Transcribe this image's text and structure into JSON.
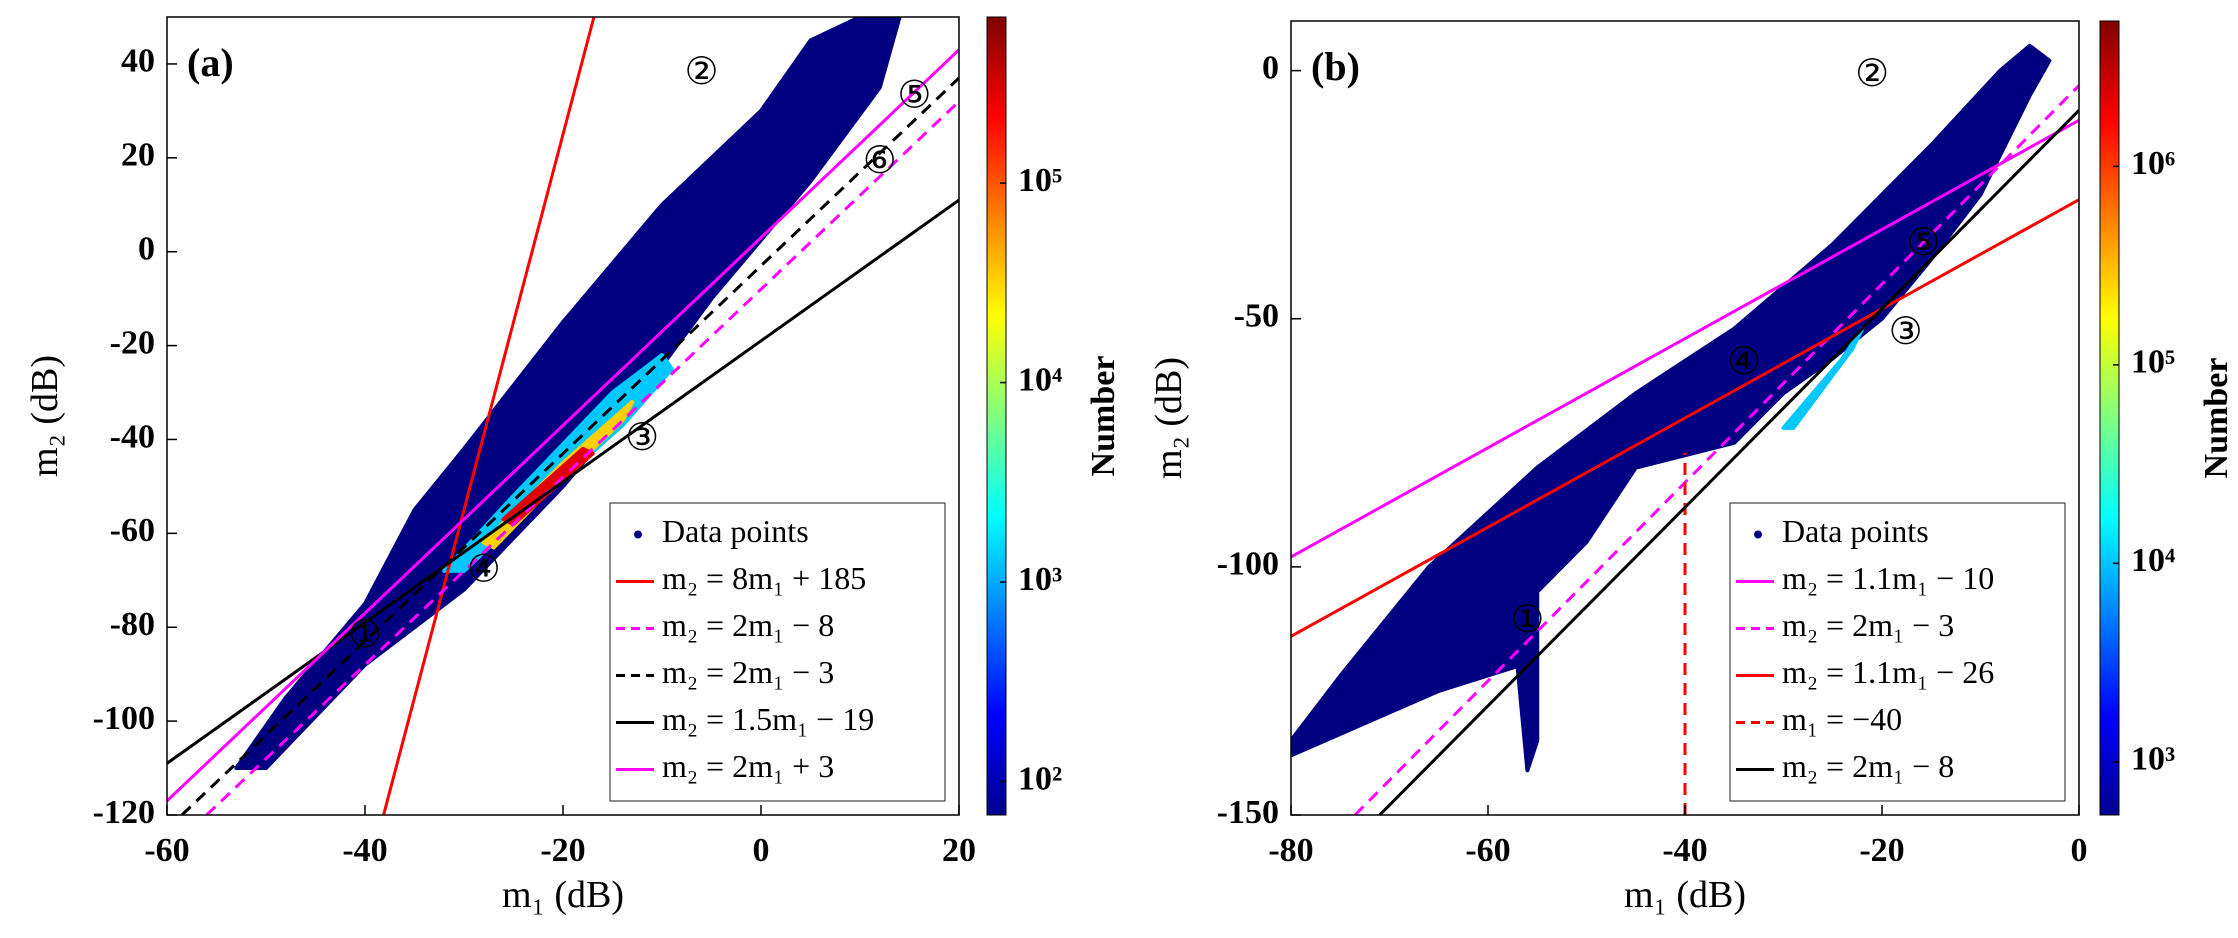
{
  "chart_data": [
    {
      "type": "scatter",
      "panel_label": "(a)",
      "xlabel": "m₁ (dB)",
      "ylabel": "m₂ (dB)",
      "xlim": [
        -60,
        20
      ],
      "ylim": [
        -120,
        50
      ],
      "xticks": [
        -60,
        -40,
        -20,
        0,
        20
      ],
      "yticks": [
        -120,
        -100,
        -80,
        -60,
        -40,
        -20,
        0,
        20,
        40
      ],
      "legend": "lower right",
      "series": [
        {
          "name": "Data points",
          "style": "cloud",
          "color": "#000080",
          "x": [
            -53,
            -48,
            -40,
            -35,
            -30,
            -20,
            -10,
            0,
            5,
            10,
            14,
            12,
            5,
            -5,
            -12,
            -20,
            -30,
            -40,
            -50
          ],
          "values": [
            -110,
            -95,
            -75,
            -55,
            -42,
            -15,
            10,
            30,
            45,
            50,
            50,
            35,
            15,
            -10,
            -30,
            -50,
            -72,
            -88,
            -110
          ]
        },
        {
          "style": "cloud",
          "color": "#00c8ff",
          "x": [
            -32,
            -25,
            -15,
            -10,
            -9,
            -14,
            -22,
            -30
          ],
          "values": [
            -68,
            -52,
            -30,
            -22,
            -25,
            -37,
            -52,
            -68
          ]
        },
        {
          "style": "cloud",
          "color": "#ffd000",
          "x": [
            -28,
            -20,
            -13,
            -14,
            -21,
            -27
          ],
          "values": [
            -62,
            -45,
            -32,
            -36,
            -50,
            -63
          ]
        },
        {
          "style": "cloud",
          "color": "#e00000",
          "x": [
            -26,
            -18,
            -17,
            -25
          ],
          "values": [
            -57,
            -42,
            -43,
            -58
          ]
        },
        {
          "name": "m₂ = 8m₁ + 185",
          "style": "line",
          "color": "#ff0000",
          "x": [
            -38.125,
            -16.875
          ],
          "values": [
            -120,
            50
          ]
        },
        {
          "name": "m₂ = 2m₁ − 8",
          "style": "dashed",
          "color": "#ff00ff",
          "x": [
            -56,
            20
          ],
          "values": [
            -120,
            32
          ]
        },
        {
          "name": "m₂ = 2m₁ − 3",
          "style": "dashed",
          "color": "#000000",
          "x": [
            -58.5,
            20
          ],
          "values": [
            -120,
            37
          ]
        },
        {
          "name": "m₂ = 1.5m₁ − 19",
          "style": "line",
          "color": "#000000",
          "x": [
            -60,
            20
          ],
          "values": [
            -109,
            11
          ]
        },
        {
          "name": "m₂ = 2m₁ + 3",
          "style": "line",
          "color": "#ff00ff",
          "x": [
            -60,
            20
          ],
          "values": [
            -117,
            43
          ]
        }
      ],
      "annotations": [
        {
          "text": "①",
          "x": -40,
          "y": -82
        },
        {
          "text": "②",
          "x": -6,
          "y": 38
        },
        {
          "text": "③",
          "x": -12,
          "y": -40
        },
        {
          "text": "④",
          "x": -28,
          "y": -68
        },
        {
          "text": "⑤",
          "x": 15.5,
          "y": 33
        },
        {
          "text": "⑥",
          "x": 12,
          "y": 19
        }
      ],
      "colorbar": {
        "label": "Number",
        "scale": "log",
        "colormap": "jet",
        "lim": [
          68,
          680000
        ],
        "ticks": [
          {
            "value": 100,
            "label": "10²"
          },
          {
            "value": 1000,
            "label": "10³"
          },
          {
            "value": 10000,
            "label": "10⁴"
          },
          {
            "value": 100000,
            "label": "10⁵"
          }
        ]
      }
    },
    {
      "type": "scatter",
      "panel_label": "(b)",
      "xlabel": "m₁ (dB)",
      "ylabel": "m₂ (dB)",
      "xlim": [
        -80,
        0
      ],
      "ylim": [
        -150,
        10
      ],
      "xticks": [
        -80,
        -60,
        -40,
        -20,
        0
      ],
      "yticks": [
        -150,
        -100,
        -50,
        0
      ],
      "legend": "lower right",
      "series": [
        {
          "name": "Data points",
          "style": "cloud",
          "color": "#000080",
          "x": [
            -80,
            -75,
            -66,
            -55,
            -45,
            -35,
            -25,
            -15,
            -8,
            -5,
            -3,
            -5,
            -10,
            -15,
            -20,
            -25,
            -30,
            -35,
            -45,
            -50,
            -55,
            -55,
            -56,
            -57,
            -65,
            -80
          ],
          "values": [
            -135,
            -122,
            -100,
            -80,
            -65,
            -52,
            -35,
            -15,
            0,
            5,
            2,
            -5,
            -25,
            -38,
            -50,
            -58,
            -65,
            -75,
            -80,
            -95,
            -105,
            -135,
            -141,
            -120,
            -125,
            -138
          ]
        },
        {
          "style": "cloud",
          "color": "#00c8ff",
          "x": [
            -30,
            -24,
            -22,
            -23,
            -29
          ],
          "values": [
            -72,
            -58,
            -52,
            -56,
            -72
          ]
        },
        {
          "name": "m₂ = 1.1m₁ − 10",
          "style": "line",
          "color": "#ff00ff",
          "x": [
            -80,
            0
          ],
          "values": [
            -98,
            -10
          ]
        },
        {
          "name": "m₂ = 2m₁ − 3",
          "style": "dashed",
          "color": "#ff00ff",
          "x": [
            -73.5,
            0
          ],
          "values": [
            -150,
            -3
          ]
        },
        {
          "name": "m₂ = 1.1m₁ − 26",
          "style": "line",
          "color": "#ff0000",
          "x": [
            -80,
            0
          ],
          "values": [
            -114,
            -26
          ]
        },
        {
          "name": "m₁ = −40",
          "style": "dashed",
          "color": "#ff0000",
          "x": [
            -40,
            -40
          ],
          "values": [
            -150,
            -77
          ]
        },
        {
          "name": "m₂ = 2m₁ − 8",
          "style": "line",
          "color": "#000000",
          "x": [
            -71,
            0
          ],
          "values": [
            -150,
            -8
          ]
        }
      ],
      "annotations": [
        {
          "text": "①",
          "x": -56,
          "y": -111
        },
        {
          "text": "②",
          "x": -21,
          "y": -1
        },
        {
          "text": "③",
          "x": -17.6,
          "y": -53
        },
        {
          "text": "④",
          "x": -34,
          "y": -59
        },
        {
          "text": "⑤",
          "x": -15.8,
          "y": -35
        }
      ],
      "colorbar": {
        "label": "Number",
        "scale": "log",
        "colormap": "jet",
        "lim": [
          540,
          5400000
        ],
        "ticks": [
          {
            "value": 1000,
            "label": "10³"
          },
          {
            "value": 10000,
            "label": "10⁴"
          },
          {
            "value": 100000,
            "label": "10⁵"
          },
          {
            "value": 1000000,
            "label": "10⁶"
          }
        ]
      }
    }
  ]
}
